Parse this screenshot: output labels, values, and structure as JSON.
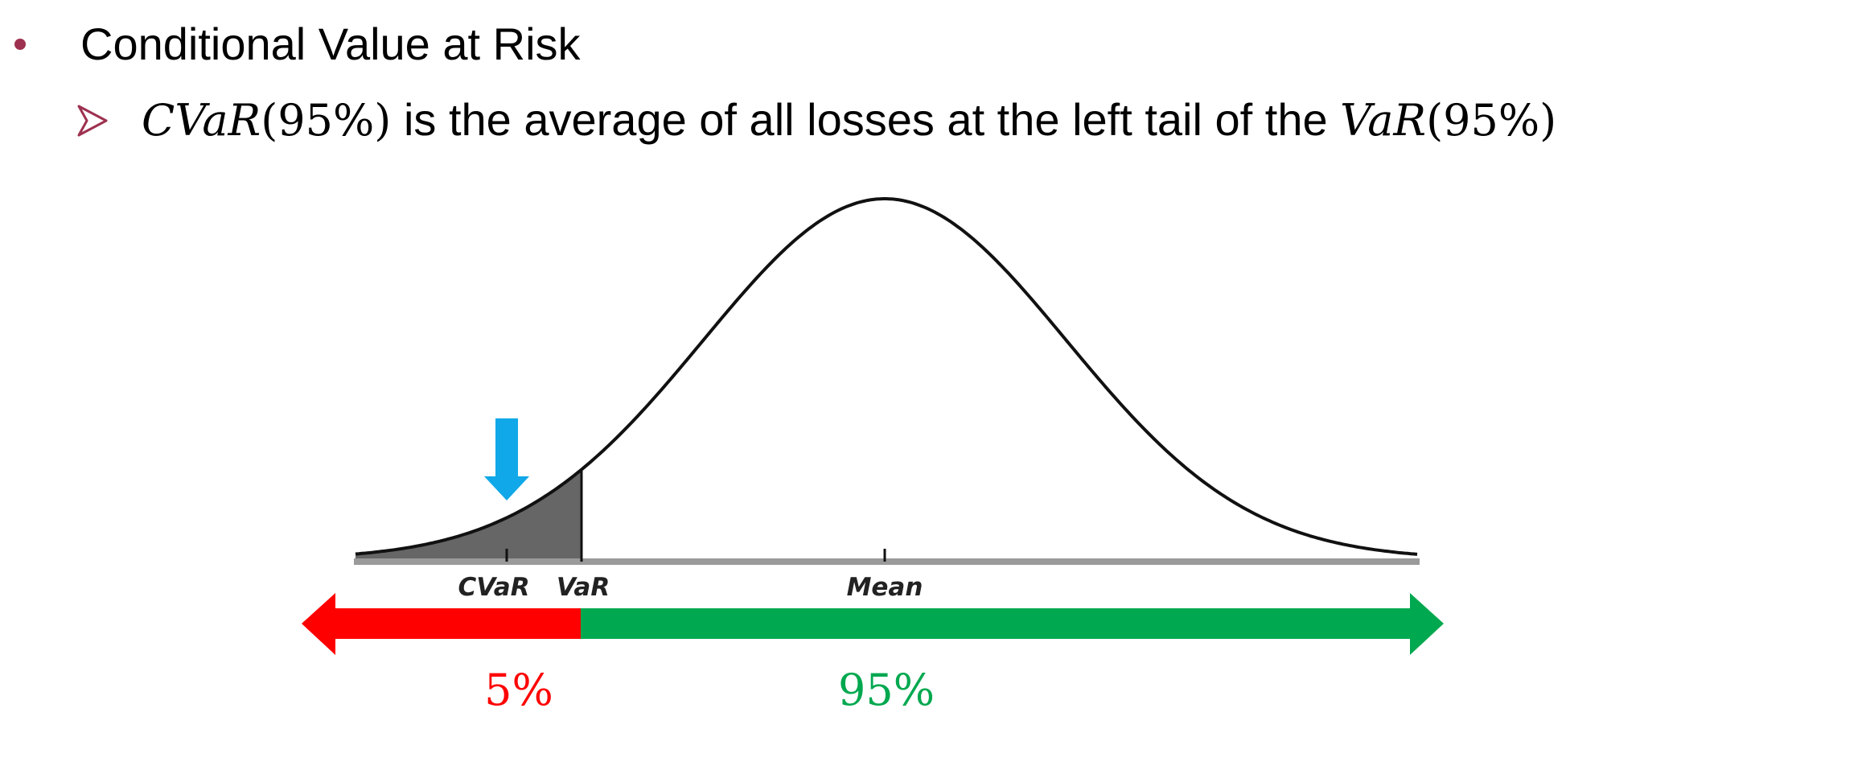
{
  "bullet": {
    "text": "Conditional Value at Risk"
  },
  "sub_bullet": {
    "cvar_symbol": "CVaR",
    "cvar_arg": "(95%)",
    "middle_text": " is the average of all losses at the left tail of the ",
    "var_symbol": "VaR",
    "var_arg": "(95%)"
  },
  "diagram": {
    "tick_labels": {
      "cvar": "CVaR",
      "var": "VaR",
      "mean": "Mean"
    },
    "left_percent": "5%",
    "right_percent": "95%",
    "left_tail_fraction": 0.05,
    "colors": {
      "left_bar": "#ff0000",
      "right_bar": "#00a84f",
      "tail_fill": "#666666",
      "marker_arrow": "#10a8e8",
      "bullet": "#9e3150",
      "left_percent_text": "#ff0000",
      "right_percent_text": "#00a84f"
    }
  }
}
